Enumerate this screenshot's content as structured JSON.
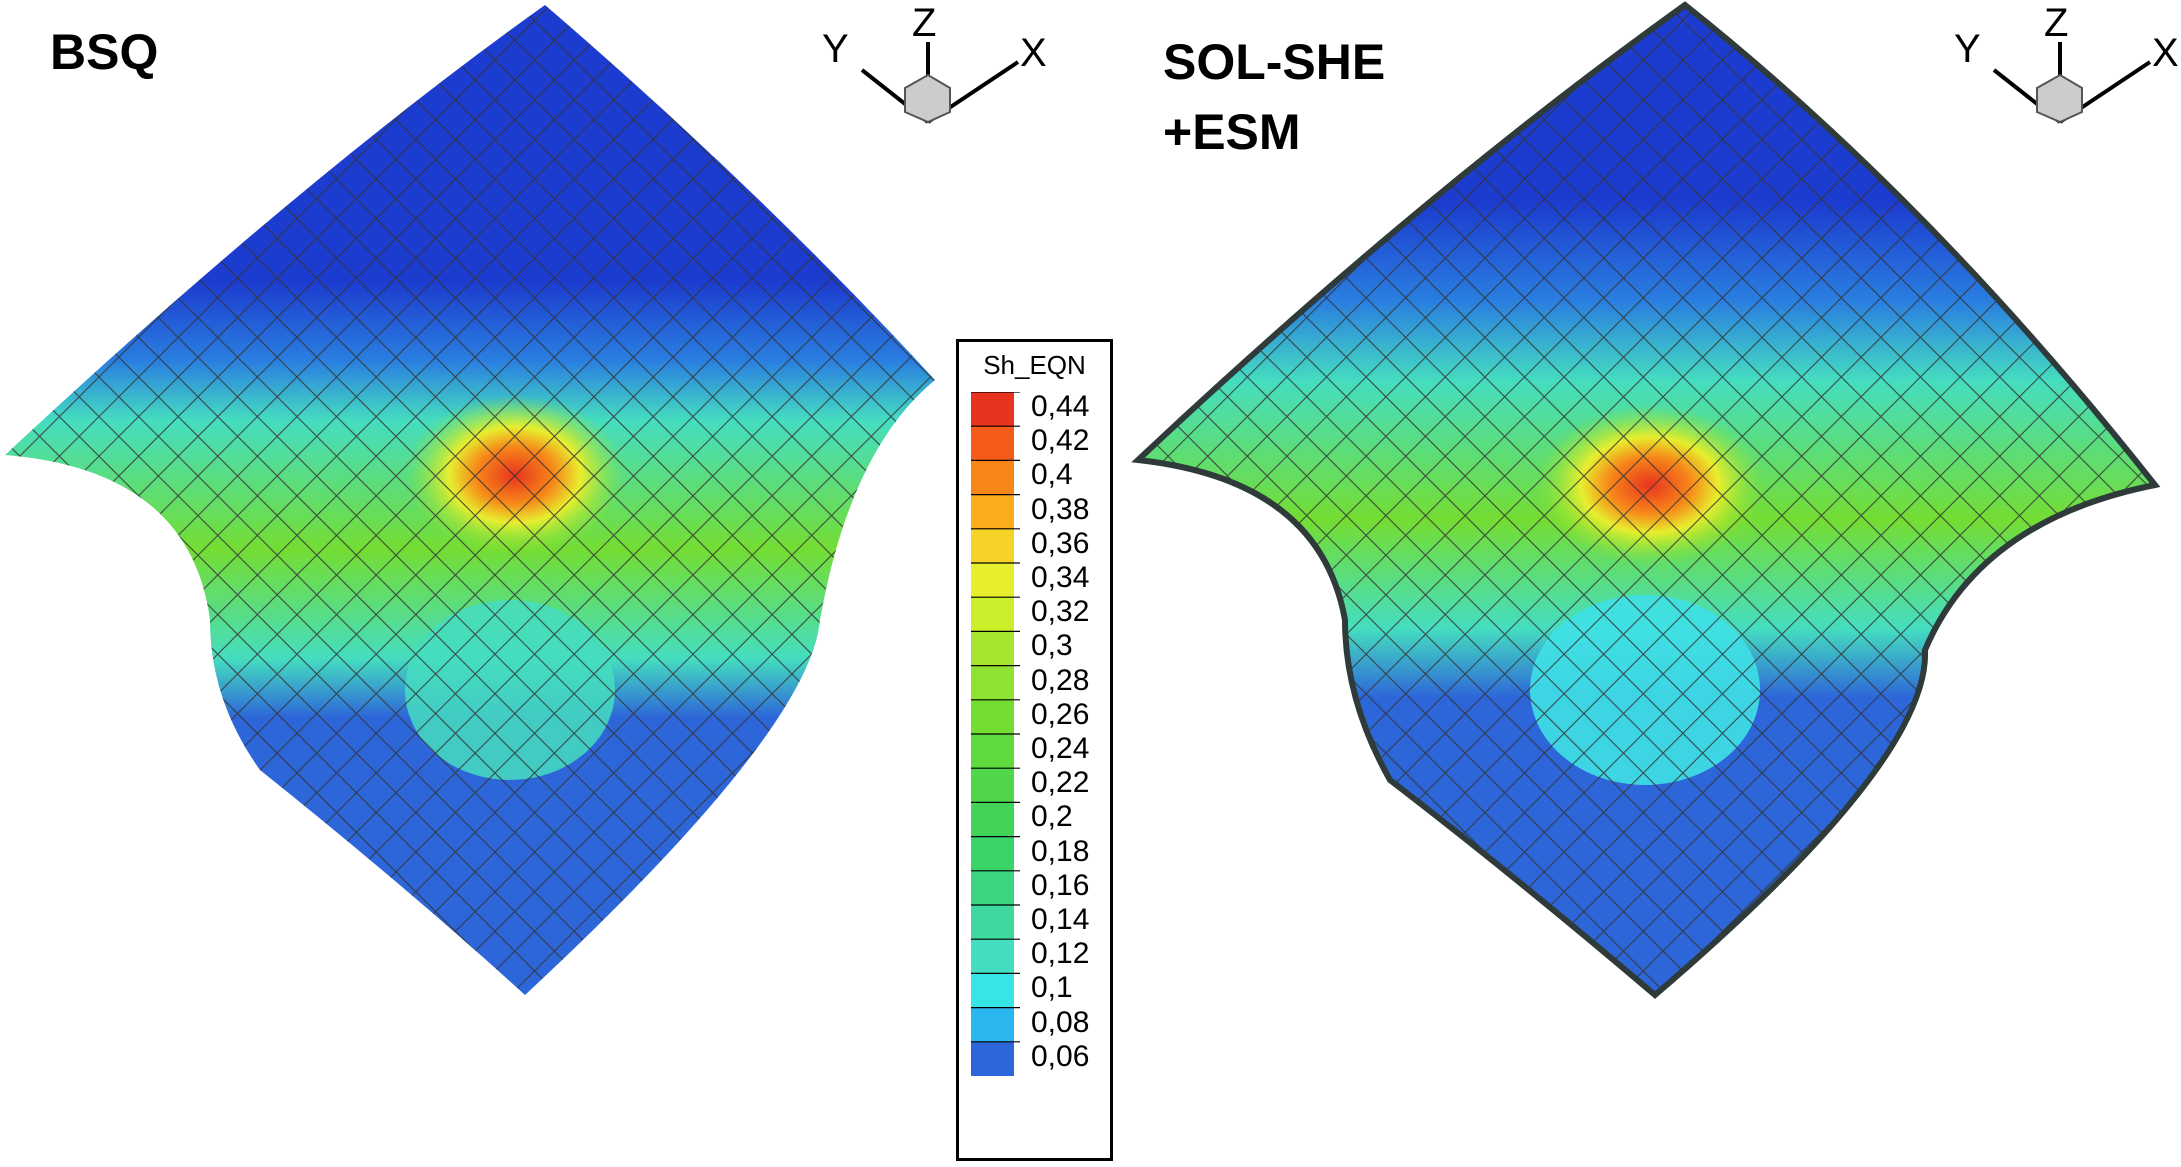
{
  "panels": [
    {
      "title_lines": [
        "BSQ"
      ]
    },
    {
      "title_lines": [
        "SOL-SHE",
        "+ESM"
      ]
    }
  ],
  "axes_labels": {
    "x": "X",
    "y": "Y",
    "z": "Z"
  },
  "legend": {
    "title": "Sh_EQN",
    "levels": [
      "0,44",
      "0,42",
      "0,4",
      "0,38",
      "0,36",
      "0,34",
      "0,32",
      "0,3",
      "0,28",
      "0,26",
      "0,24",
      "0,22",
      "0,2",
      "0,18",
      "0,16",
      "0,14",
      "0,12",
      "0,1",
      "0,08",
      "0,06"
    ],
    "colors": [
      "#e8341f",
      "#f45a18",
      "#f78619",
      "#f9ad1d",
      "#f6d427",
      "#e7ee2e",
      "#cbee2b",
      "#a8e531",
      "#8ee331",
      "#74dd33",
      "#5fd93d",
      "#4fd64a",
      "#43d457",
      "#3ad367",
      "#3bd582",
      "#3fd99f",
      "#45ddc0",
      "#37e4e6",
      "#2ab6ef",
      "#2d66d8"
    ]
  },
  "colors": {
    "dark_blue": "#1c3ccf",
    "mid_blue": "#2d66d8",
    "cyan": "#3fe0e6",
    "green": "#4fd64a",
    "mesh_line": "#333333",
    "hot": "#e8341f",
    "outline": "#2f3a3a"
  }
}
